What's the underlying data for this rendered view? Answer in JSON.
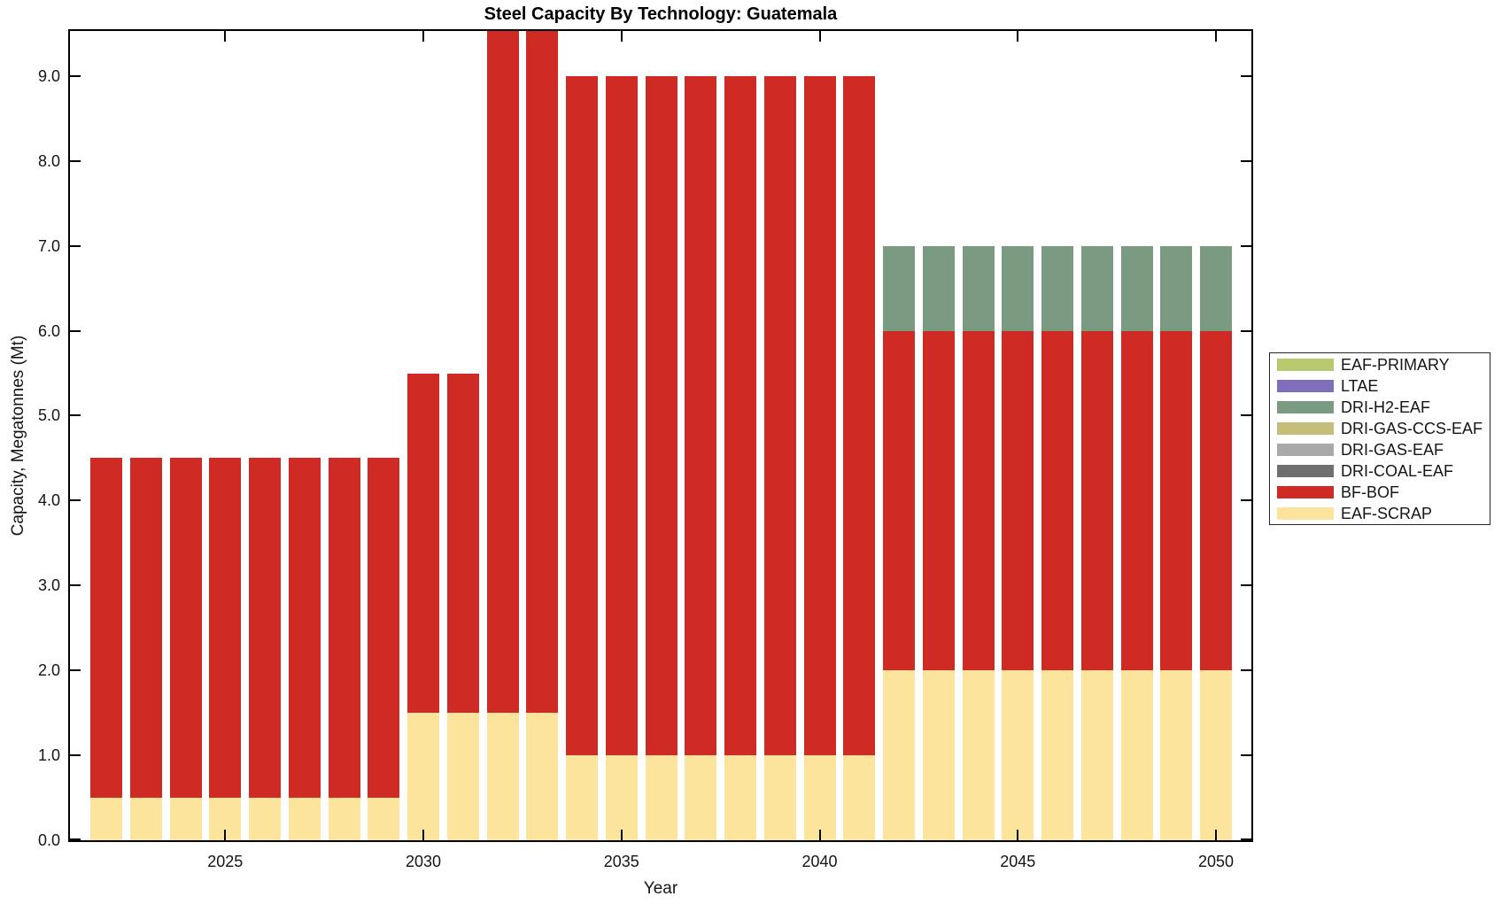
{
  "chart_data": {
    "type": "bar",
    "stacked": true,
    "title": "Steel Capacity By Technology: Guatemala",
    "xlabel": "Year",
    "ylabel": "Capacity, Megatonnes (Mt)",
    "x": [
      2022,
      2023,
      2024,
      2025,
      2026,
      2027,
      2028,
      2029,
      2030,
      2031,
      2032,
      2033,
      2034,
      2035,
      2036,
      2037,
      2038,
      2039,
      2040,
      2041,
      2042,
      2043,
      2044,
      2045,
      2046,
      2047,
      2048,
      2049,
      2050
    ],
    "x_tick_years": [
      2025,
      2030,
      2035,
      2040,
      2045,
      2050
    ],
    "x_tick_labels": [
      "2025",
      "2030",
      "2035",
      "2040",
      "2045",
      "2050"
    ],
    "y_tick_values": [
      0,
      1,
      2,
      3,
      4,
      5,
      6,
      7,
      8,
      9
    ],
    "y_tick_labels": [
      "0.0",
      "1.0",
      "2.0",
      "3.0",
      "4.0",
      "5.0",
      "6.0",
      "7.0",
      "8.0",
      "9.0"
    ],
    "ylim": [
      0,
      9.53
    ],
    "grid": false,
    "legend_position": "right-outside",
    "bars_clipped_at_top_years": [
      2032,
      2033
    ],
    "series": [
      {
        "name": "EAF-PRIMARY",
        "color": "#b9c96e",
        "values": [
          0,
          0,
          0,
          0,
          0,
          0,
          0,
          0,
          0,
          0,
          0,
          0,
          0,
          0,
          0,
          0,
          0,
          0,
          0,
          0,
          0,
          0,
          0,
          0,
          0,
          0,
          0,
          0,
          0
        ]
      },
      {
        "name": "LTAE",
        "color": "#7f6fbb",
        "values": [
          0,
          0,
          0,
          0,
          0,
          0,
          0,
          0,
          0,
          0,
          0,
          0,
          0,
          0,
          0,
          0,
          0,
          0,
          0,
          0,
          0,
          0,
          0,
          0,
          0,
          0,
          0,
          0,
          0
        ]
      },
      {
        "name": "DRI-H2-EAF",
        "color": "#7a9b81",
        "values": [
          0,
          0,
          0,
          0,
          0,
          0,
          0,
          0,
          0,
          0,
          0,
          0,
          0,
          0,
          0,
          0,
          0,
          0,
          0,
          0,
          1,
          1,
          1,
          1,
          1,
          1,
          1,
          1,
          1
        ]
      },
      {
        "name": "DRI-GAS-CCS-EAF",
        "color": "#c7bd7a",
        "values": [
          0,
          0,
          0,
          0,
          0,
          0,
          0,
          0,
          0,
          0,
          0,
          0,
          0,
          0,
          0,
          0,
          0,
          0,
          0,
          0,
          0,
          0,
          0,
          0,
          0,
          0,
          0,
          0,
          0
        ]
      },
      {
        "name": "DRI-GAS-EAF",
        "color": "#a9a9a9",
        "values": [
          0,
          0,
          0,
          0,
          0,
          0,
          0,
          0,
          0,
          0,
          0,
          0,
          0,
          0,
          0,
          0,
          0,
          0,
          0,
          0,
          0,
          0,
          0,
          0,
          0,
          0,
          0,
          0,
          0
        ]
      },
      {
        "name": "DRI-COAL-EAF",
        "color": "#6f6f6f",
        "values": [
          0,
          0,
          0,
          0,
          0,
          0,
          0,
          0,
          0,
          0,
          0,
          0,
          0,
          0,
          0,
          0,
          0,
          0,
          0,
          0,
          0,
          0,
          0,
          0,
          0,
          0,
          0,
          0,
          0
        ]
      },
      {
        "name": "BF-BOF",
        "color": "#cf2a23",
        "values": [
          4,
          4,
          4,
          4,
          4,
          4,
          4,
          4,
          4,
          4,
          9,
          9,
          8,
          8,
          8,
          8,
          8,
          8,
          8,
          8,
          4,
          4,
          4,
          4,
          4,
          4,
          4,
          4,
          4
        ]
      },
      {
        "name": "EAF-SCRAP",
        "color": "#fce49c",
        "values": [
          0.5,
          0.5,
          0.5,
          0.5,
          0.5,
          0.5,
          0.5,
          0.5,
          1.5,
          1.5,
          1.5,
          1.5,
          1,
          1,
          1,
          1,
          1,
          1,
          1,
          1,
          2,
          2,
          2,
          2,
          2,
          2,
          2,
          2,
          2
        ]
      }
    ]
  }
}
